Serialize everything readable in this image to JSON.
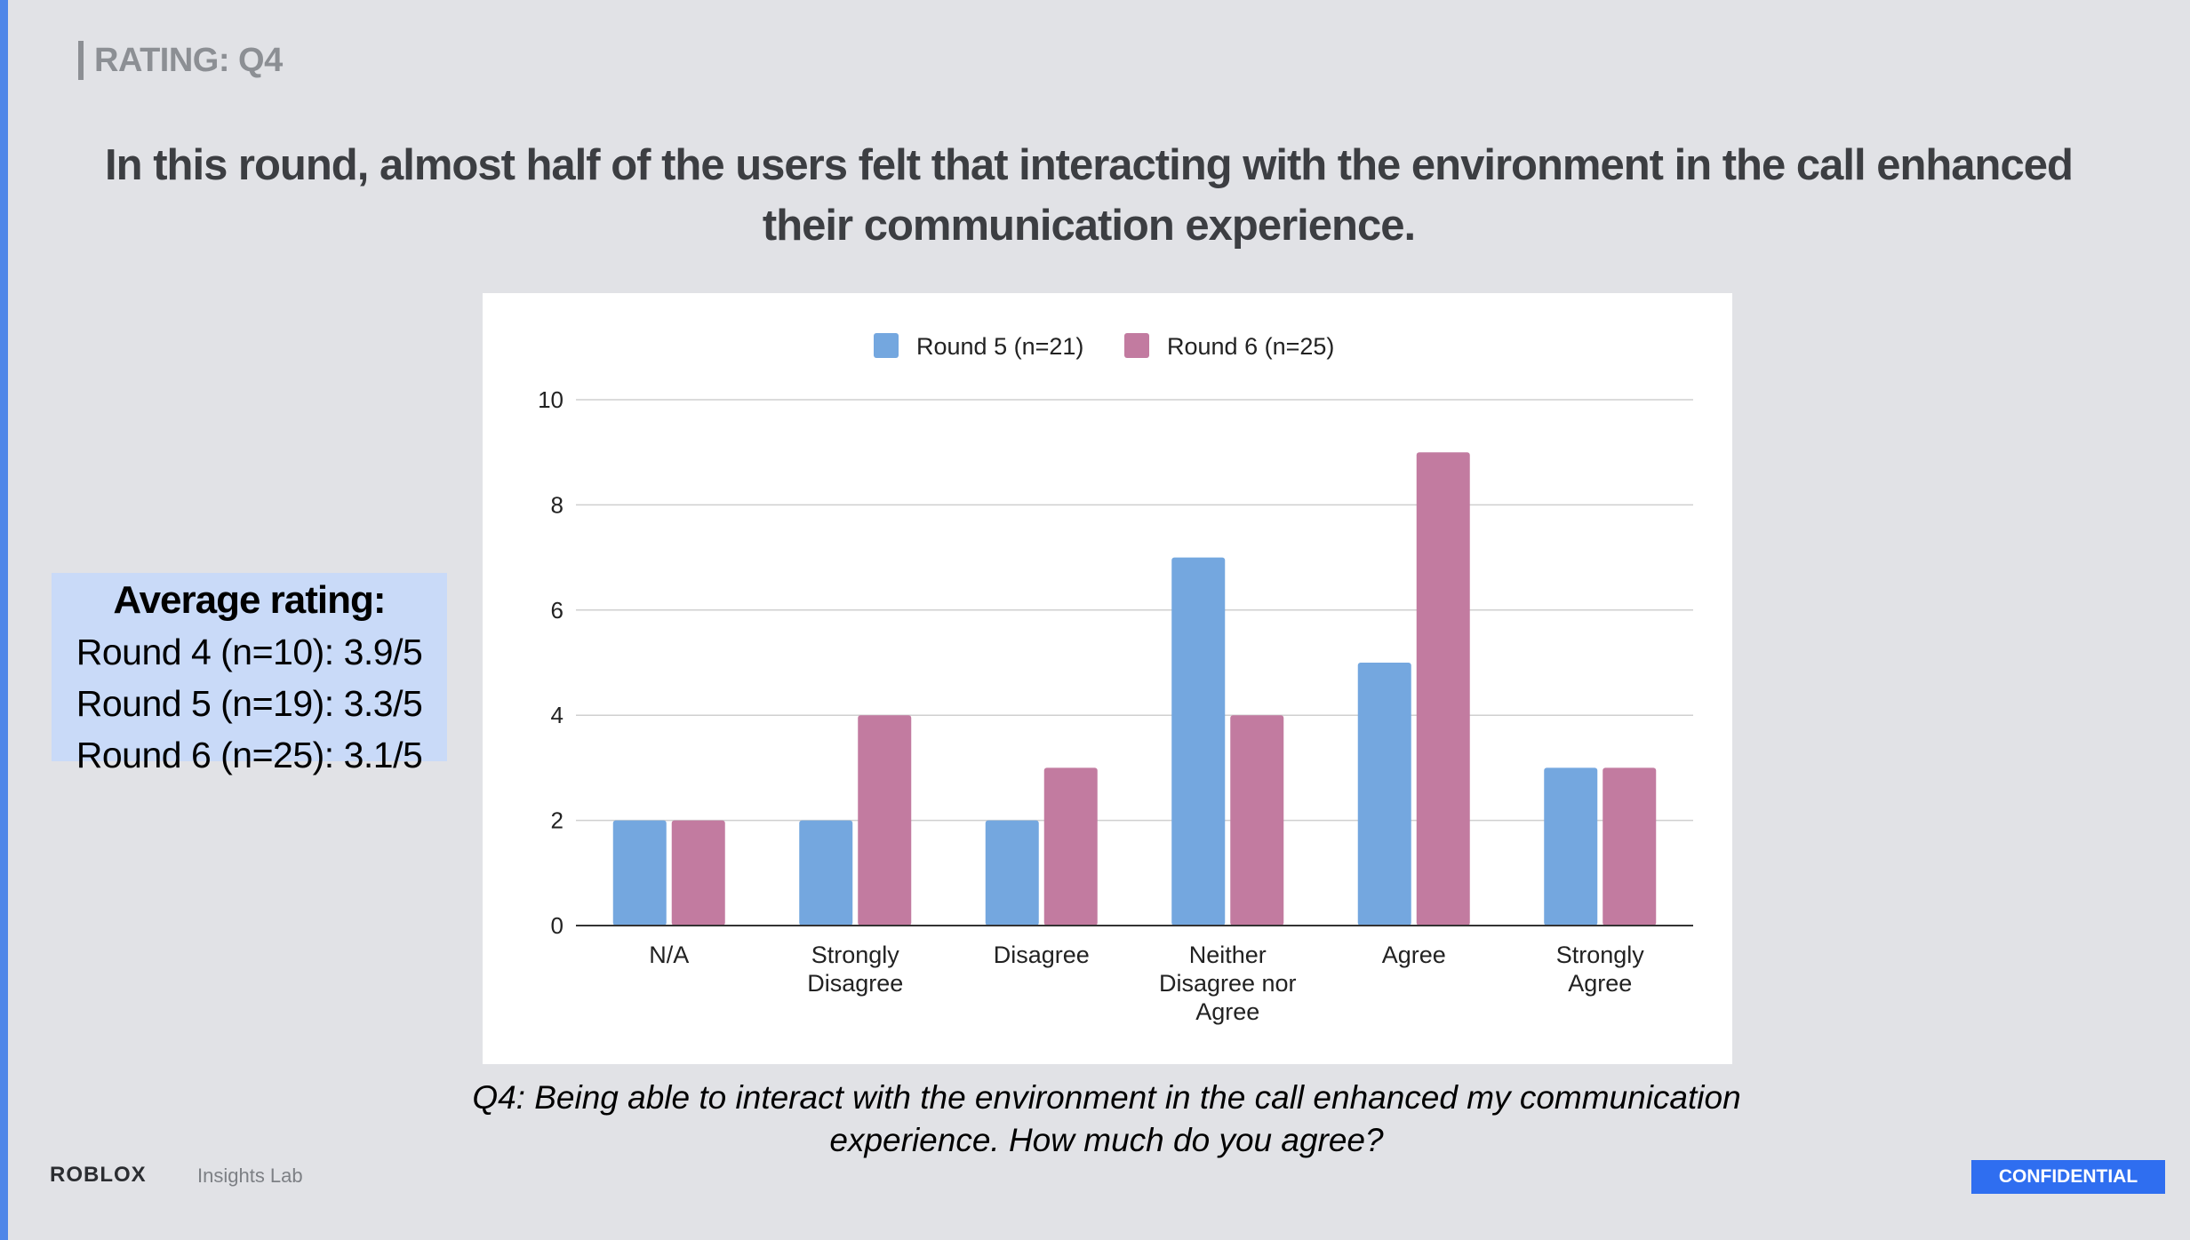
{
  "slide": {
    "section_label": "RATING: Q4",
    "headline": "In this round, almost half of the users felt that interacting with the environment in the call enhanced their communication experience.",
    "average_box": {
      "title": "Average rating:",
      "lines": [
        "Round 4 (n=10): 3.9/5",
        "Round 5 (n=19): 3.3/5",
        "Round 6 (n=25): 3.1/5"
      ]
    },
    "caption": "Q4: Being able to interact with the environment in the call enhanced my communication experience. How much do you agree?",
    "footer": {
      "logo": "ROBLOX",
      "subtitle": "Insights Lab",
      "badge": "CONFIDENTIAL"
    }
  },
  "chart_data": {
    "type": "bar",
    "categories": [
      "N/A",
      "Strongly Disagree",
      "Disagree",
      "Neither Disagree nor Agree",
      "Agree",
      "Strongly Agree"
    ],
    "category_lines": [
      [
        "N/A"
      ],
      [
        "Strongly",
        "Disagree"
      ],
      [
        "Disagree"
      ],
      [
        "Neither",
        "Disagree nor",
        "Agree"
      ],
      [
        "Agree"
      ],
      [
        "Strongly",
        "Agree"
      ]
    ],
    "series": [
      {
        "name": "Round 5 (n=21)",
        "values": [
          2,
          2,
          2,
          7,
          5,
          3
        ],
        "color": "#74a7df"
      },
      {
        "name": "Round 6 (n=25)",
        "values": [
          2,
          4,
          3,
          4,
          9,
          3
        ],
        "color": "#c27ba0"
      }
    ],
    "ylim": [
      0,
      10
    ],
    "yticks": [
      0,
      2,
      4,
      6,
      8,
      10
    ],
    "grid": true,
    "legend_position": "top-center",
    "xlabel": "",
    "ylabel": ""
  }
}
